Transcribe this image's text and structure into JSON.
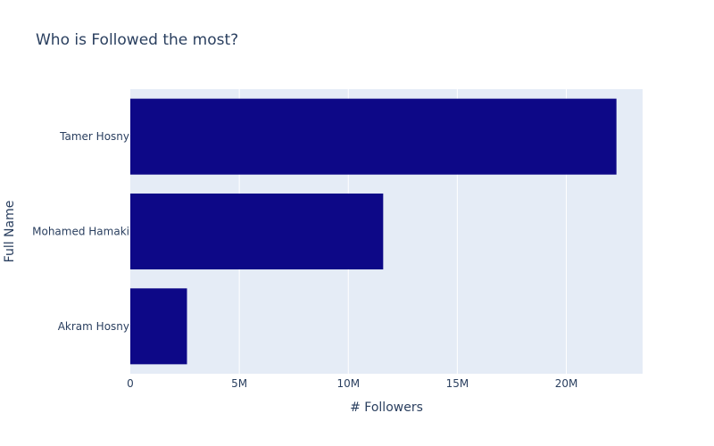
{
  "chart_data": {
    "type": "bar",
    "orientation": "horizontal",
    "title": "Who is Followed the most?",
    "xlabel": "# Followers",
    "ylabel": "Full Name",
    "categories": [
      "Tamer Hosny",
      "Mohamed Hamaki",
      "Akram Hosny"
    ],
    "values": [
      22300000,
      11600000,
      2600000
    ],
    "xlim": [
      0,
      23500000
    ],
    "xticks": [
      0,
      5000000,
      10000000,
      15000000,
      20000000
    ],
    "xtick_labels": [
      "0",
      "5M",
      "10M",
      "15M",
      "20M"
    ],
    "grid": true,
    "legend": "none",
    "colors": {
      "bar": "#0d0887",
      "plot_background": "#e5ecf6",
      "gridline": "#ffffff",
      "text": "#2a3f5f"
    }
  }
}
